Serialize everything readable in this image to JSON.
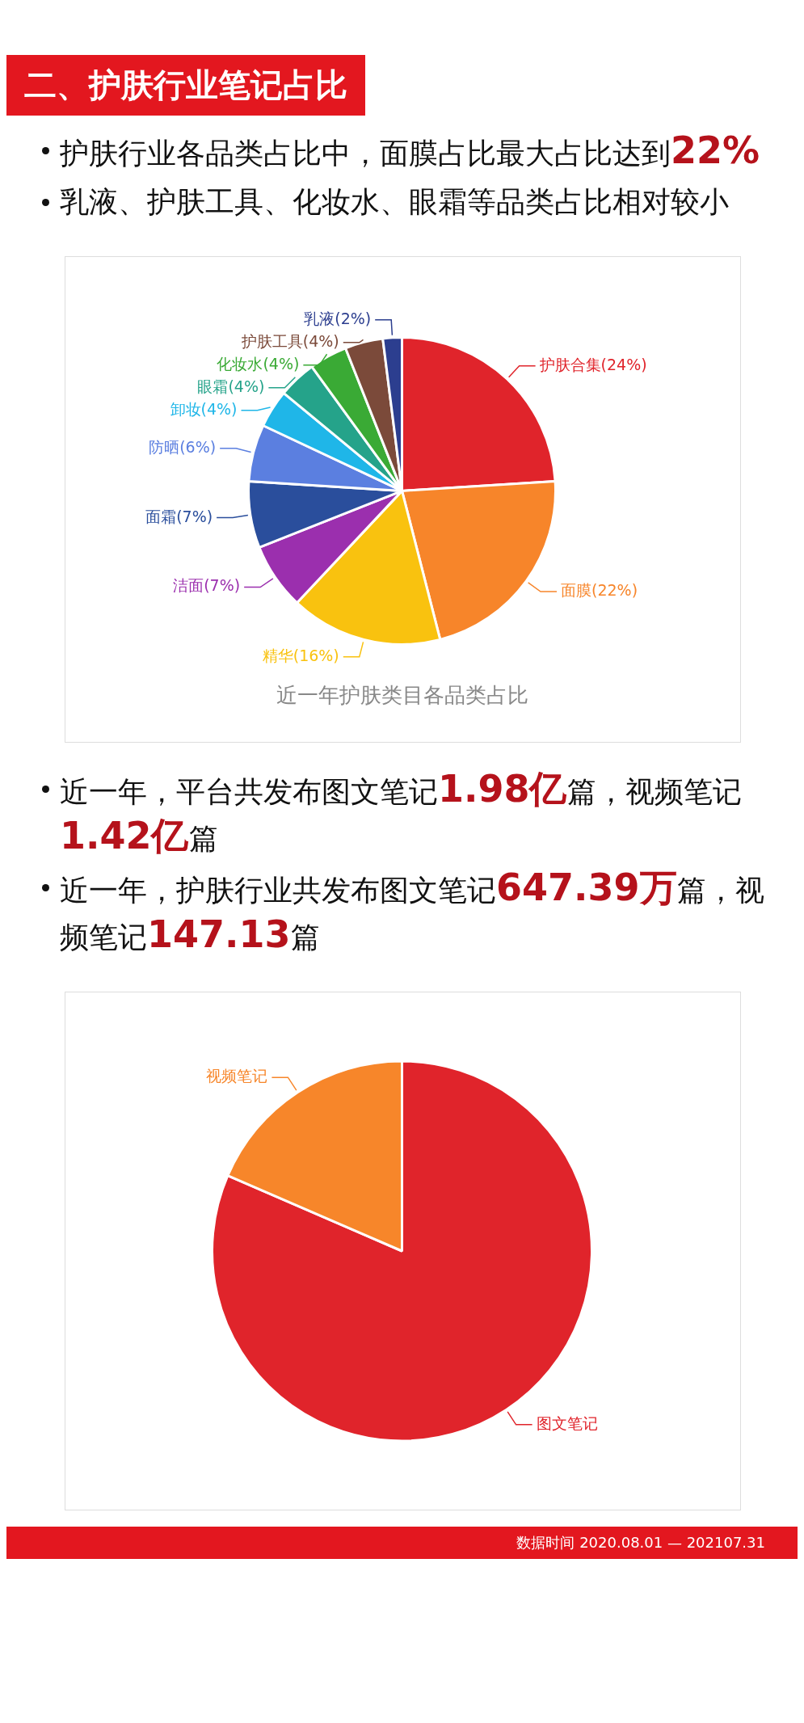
{
  "chart_data": [
    {
      "type": "pie",
      "title": "近一年护肤类目各品类占比",
      "annotations": [
        "二、护肤行业笔记占比",
        "护肤行业各品类占比中，面膜占比最大占比达到22%",
        "乳液、护肤工具、化妆水、眼霜等品类占比相对较小"
      ],
      "categories": [
        "护肤合集",
        "面膜",
        "精华",
        "洁面",
        "面霜",
        "防晒",
        "卸妆",
        "眼霜",
        "化妆水",
        "护肤工具",
        "乳液"
      ],
      "values": [
        24,
        22,
        16,
        7,
        7,
        6,
        4,
        4,
        4,
        4,
        2
      ],
      "value_labels": [
        "(24%)",
        "(22%)",
        "(16%)",
        "(7%)",
        "(7%)",
        "(6%)",
        "(4%)",
        "(4%)",
        "(4%)",
        "(4%)",
        "(2%)"
      ],
      "colors": [
        "#e0242b",
        "#f7852a",
        "#f9c20f",
        "#9b2fae",
        "#2a4e9c",
        "#5b7fe0",
        "#1fb6e8",
        "#25a38a",
        "#3aaa35",
        "#7b4a3a",
        "#2c3e8f"
      ],
      "legend": false
    },
    {
      "type": "pie",
      "annotations": [
        "近一年，平台共发布图文笔记1.98亿篇，视频笔记1.42亿篇",
        "近一年，护肤行业共发布图文笔记647.39万篇，视频笔记147.13篇",
        "数据时间 2020.08.01 — 202107.31"
      ],
      "categories": [
        "图文笔记",
        "视频笔记"
      ],
      "values": [
        81.5,
        18.5
      ],
      "colors": [
        "#e0242b",
        "#f7862a"
      ],
      "legend": false
    }
  ]
}
